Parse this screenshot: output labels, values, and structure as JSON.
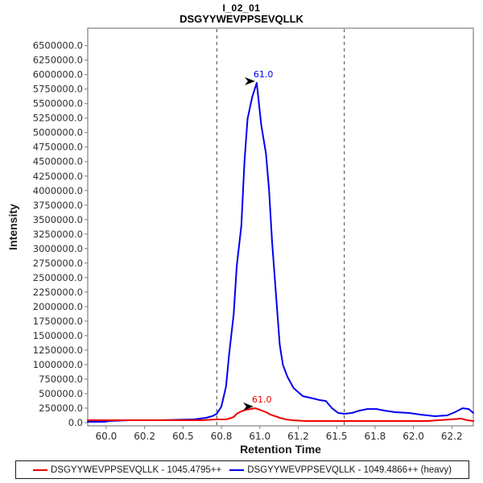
{
  "header": {
    "title": "I_02_01",
    "subtitle": "DSGYYWEVPPSEVQLLK"
  },
  "axes": {
    "x_label": "Retention Time",
    "y_label": "Intensity",
    "x_ticks": [
      {
        "v": 60.0,
        "label": "60.0"
      },
      {
        "v": 60.25,
        "label": "60.2"
      },
      {
        "v": 60.5,
        "label": "60.5"
      },
      {
        "v": 60.75,
        "label": "60.8"
      },
      {
        "v": 61.0,
        "label": "61.0"
      },
      {
        "v": 61.25,
        "label": "61.2"
      },
      {
        "v": 61.5,
        "label": "61.5"
      },
      {
        "v": 61.75,
        "label": "61.8"
      },
      {
        "v": 62.0,
        "label": "62.0"
      },
      {
        "v": 62.25,
        "label": "62.2"
      }
    ],
    "y_tick_labels": [
      "0.0",
      "250000.0",
      "500000.0",
      "750000.0",
      "1000000.0",
      "1250000.0",
      "1500000.0",
      "1750000.0",
      "2000000.0",
      "2250000.0",
      "2500000.0",
      "2750000.0",
      "3000000.0",
      "3250000.0",
      "3500000.0",
      "3750000.0",
      "4000000.0",
      "4250000.0",
      "4500000.0",
      "4750000.0",
      "5000000.0",
      "5250000.0",
      "5500000.0",
      "5750000.0",
      "6000000.0",
      "6250000.0",
      "6500000.0"
    ],
    "y_tick_step": 250000
  },
  "chart_data": {
    "type": "line",
    "title": "I_02_01",
    "subtitle": "DSGYYWEVPPSEVQLLK",
    "xlabel": "Retention Time",
    "ylabel": "Intensity",
    "xlim": [
      59.88,
      62.39
    ],
    "ylim": [
      0,
      6800000
    ],
    "grid": false,
    "legend_position": "bottom",
    "integration_boundaries": [
      60.72,
      61.55
    ],
    "boundary_style": {
      "color": "#444444",
      "dash": "4 4"
    },
    "series": [
      {
        "name": "DSGYYWEVPPSEVQLLK - 1049.4866++ (heavy)",
        "color": "#0000ee",
        "peak_rt_label": "61.0",
        "peak_rt": 60.98,
        "peak_intensity": 5858000,
        "points": [
          [
            59.88,
            14000
          ],
          [
            59.99,
            14000
          ],
          [
            60.02,
            28000
          ],
          [
            60.15,
            42000
          ],
          [
            60.36,
            42000
          ],
          [
            60.57,
            55000
          ],
          [
            60.65,
            83000
          ],
          [
            60.69,
            111000
          ],
          [
            60.72,
            152000
          ],
          [
            60.75,
            277000
          ],
          [
            60.78,
            623000
          ],
          [
            60.8,
            1177000
          ],
          [
            60.83,
            1870000
          ],
          [
            60.85,
            2701000
          ],
          [
            60.88,
            3393000
          ],
          [
            60.9,
            4501000
          ],
          [
            60.92,
            5235000
          ],
          [
            60.95,
            5609000
          ],
          [
            60.98,
            5858000
          ],
          [
            61.01,
            5124000
          ],
          [
            61.04,
            4639000
          ],
          [
            61.06,
            4016000
          ],
          [
            61.08,
            3116000
          ],
          [
            61.11,
            2050000
          ],
          [
            61.13,
            1343000
          ],
          [
            61.15,
            997000
          ],
          [
            61.18,
            789000
          ],
          [
            61.22,
            595000
          ],
          [
            61.28,
            457000
          ],
          [
            61.35,
            415000
          ],
          [
            61.39,
            388000
          ],
          [
            61.43,
            374000
          ],
          [
            61.47,
            249000
          ],
          [
            61.51,
            166000
          ],
          [
            61.55,
            152000
          ],
          [
            61.6,
            166000
          ],
          [
            61.65,
            208000
          ],
          [
            61.7,
            235000
          ],
          [
            61.76,
            235000
          ],
          [
            61.81,
            208000
          ],
          [
            61.88,
            180000
          ],
          [
            61.97,
            166000
          ],
          [
            62.05,
            138000
          ],
          [
            62.14,
            111000
          ],
          [
            62.22,
            125000
          ],
          [
            62.27,
            180000
          ],
          [
            62.32,
            249000
          ],
          [
            62.36,
            235000
          ],
          [
            62.39,
            166000
          ]
        ]
      },
      {
        "name": "DSGYYWEVPPSEVQLLK - 1045.4795++",
        "color": "#ee0000",
        "peak_rt_label": "61.0",
        "peak_rt": 60.97,
        "peak_intensity": 249000,
        "points": [
          [
            59.88,
            42000
          ],
          [
            60.1,
            42000
          ],
          [
            60.36,
            42000
          ],
          [
            60.62,
            42000
          ],
          [
            60.72,
            55000
          ],
          [
            60.78,
            55000
          ],
          [
            60.8,
            69000
          ],
          [
            60.83,
            97000
          ],
          [
            60.85,
            152000
          ],
          [
            60.88,
            194000
          ],
          [
            60.91,
            222000
          ],
          [
            60.94,
            235000
          ],
          [
            60.97,
            249000
          ],
          [
            61.0,
            222000
          ],
          [
            61.04,
            180000
          ],
          [
            61.07,
            138000
          ],
          [
            61.1,
            111000
          ],
          [
            61.13,
            83000
          ],
          [
            61.17,
            55000
          ],
          [
            61.21,
            42000
          ],
          [
            61.3,
            28000
          ],
          [
            61.51,
            28000
          ],
          [
            61.72,
            28000
          ],
          [
            61.93,
            28000
          ],
          [
            62.09,
            28000
          ],
          [
            62.24,
            55000
          ],
          [
            62.31,
            69000
          ],
          [
            62.35,
            42000
          ],
          [
            62.39,
            28000
          ]
        ]
      }
    ]
  },
  "legend": {
    "items": [
      {
        "label": "DSGYYWEVPPSEVQLLK - 1045.4795++",
        "color": "#ee0000"
      },
      {
        "label": "DSGYYWEVPPSEVQLLK - 1049.4866++ (heavy)",
        "color": "#0000ee"
      }
    ]
  }
}
